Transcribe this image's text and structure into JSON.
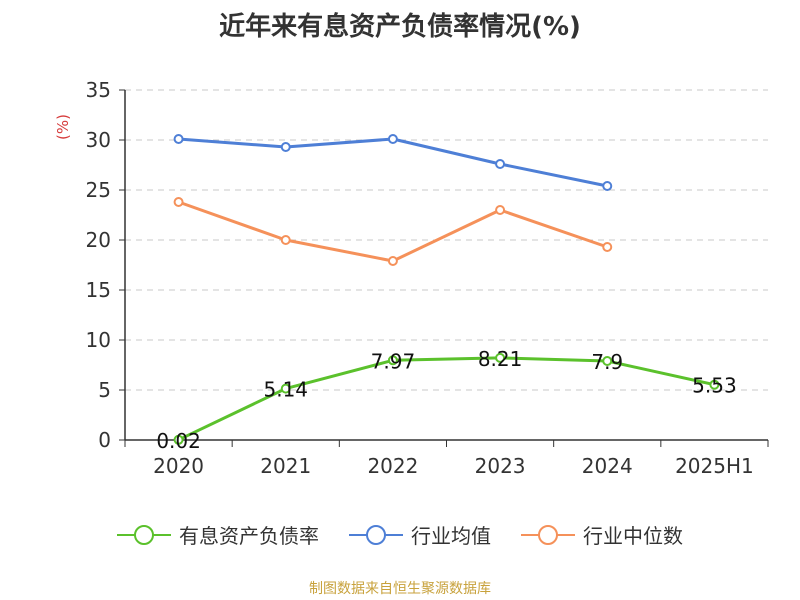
{
  "header": {
    "title": "近年来有息资产负债率情况(%)"
  },
  "footer": {
    "source": "制图数据来自恒生聚源数据库"
  },
  "colors": {
    "series1": "#5bc12c",
    "series2": "#4e7fd6",
    "series3": "#f5915a"
  },
  "chart_data": {
    "type": "line",
    "title": "近年来有息资产负债率情况(%)",
    "ylabel": "(%)",
    "xlabel": "",
    "categories": [
      "2020",
      "2021",
      "2022",
      "2023",
      "2024",
      "2025H1"
    ],
    "ylim": [
      0,
      35
    ],
    "yticks": [
      0,
      5,
      10,
      15,
      20,
      25,
      30,
      35
    ],
    "grid": true,
    "legend_position": "bottom",
    "series": [
      {
        "name": "有息资产负债率",
        "values": [
          0.02,
          5.14,
          7.97,
          8.21,
          7.9,
          5.53
        ],
        "labels": [
          "0.02",
          "5.14",
          "7.97",
          "8.21",
          "7.9",
          "5.53"
        ]
      },
      {
        "name": "行业均值",
        "values": [
          30.1,
          29.3,
          30.1,
          27.6,
          25.4,
          null
        ]
      },
      {
        "name": "行业中位数",
        "values": [
          23.8,
          20.0,
          17.9,
          23.0,
          19.3,
          null
        ]
      }
    ]
  }
}
